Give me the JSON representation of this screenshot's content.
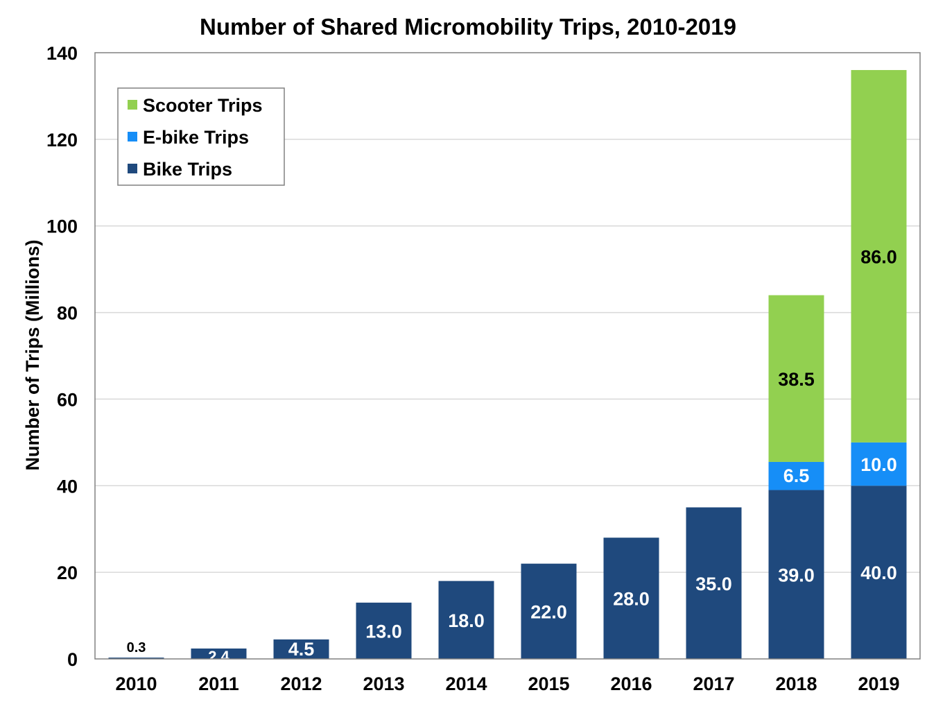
{
  "chart_data": {
    "type": "bar",
    "stacked": true,
    "title": "Number of Shared Micromobility Trips, 2010-2019",
    "xlabel": "",
    "ylabel": "Number of Trips (Millions)",
    "ylim": [
      0,
      140
    ],
    "yticks": [
      0,
      20,
      40,
      60,
      80,
      100,
      120,
      140
    ],
    "ytick_labels": [
      "0",
      "20",
      "40",
      "60",
      "80",
      "100",
      "120",
      "140"
    ],
    "grid": true,
    "legend_position": "top-left",
    "categories": [
      "2010",
      "2011",
      "2012",
      "2013",
      "2014",
      "2015",
      "2016",
      "2017",
      "2018",
      "2019"
    ],
    "series": [
      {
        "name": "Bike Trips",
        "color": "#1F497D",
        "values": [
          0.3,
          2.4,
          4.5,
          13.0,
          18.0,
          22.0,
          28.0,
          35.0,
          39.0,
          40.0
        ],
        "labels": [
          "0.3",
          "2.4",
          "4.5",
          "13.0",
          "18.0",
          "22.0",
          "28.0",
          "35.0",
          "39.0",
          "40.0"
        ]
      },
      {
        "name": "E-bike Trips",
        "color": "#168EF7",
        "values": [
          0,
          0,
          0,
          0,
          0,
          0,
          0,
          0,
          6.5,
          10.0
        ],
        "labels": [
          "",
          "",
          "",
          "",
          "",
          "",
          "",
          "",
          "6.5",
          "10.0"
        ]
      },
      {
        "name": "Scooter Trips",
        "color": "#92D050",
        "values": [
          0,
          0,
          0,
          0,
          0,
          0,
          0,
          0,
          38.5,
          86.0
        ],
        "labels": [
          "",
          "",
          "",
          "",
          "",
          "",
          "",
          "",
          "38.5",
          "86.0"
        ]
      }
    ],
    "legend_order": [
      "Scooter Trips",
      "E-bike Trips",
      "Bike Trips"
    ]
  }
}
